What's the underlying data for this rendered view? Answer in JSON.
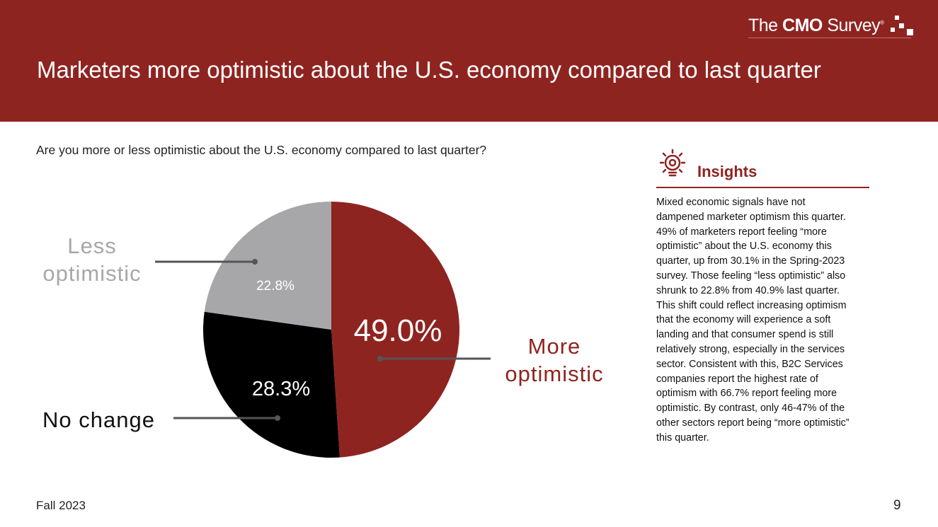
{
  "header": {
    "title": "Marketers more optimistic about the U.S. economy compared to last quarter",
    "logo": {
      "the": "The",
      "cmo": "CMO",
      "survey": "Survey",
      "reg": "®"
    }
  },
  "question": "Are you more or less optimistic about the U.S. economy compared to last quarter?",
  "chart_data": {
    "type": "pie",
    "title": "Are you more or less optimistic about the U.S. economy compared to last quarter?",
    "categories": [
      "More optimistic",
      "No change",
      "Less optimistic"
    ],
    "values": [
      49.0,
      28.3,
      22.8
    ],
    "data_labels": [
      "49.0%",
      "28.3%",
      "22.8%"
    ],
    "colors": [
      "#8e2420",
      "#000000",
      "#a7a7a9"
    ],
    "start": "top, clockwise"
  },
  "labels": {
    "more": "More optimistic",
    "nochange": "No change",
    "less": "Less optimistic"
  },
  "insights": {
    "icon": "lightbulb-gear-icon",
    "title": "Insights",
    "lines": [
      "Mixed economic signals have not",
      "dampened marketer optimism this quarter.",
      "49% of marketers report feeling “more",
      "optimistic” about the U.S. economy this",
      "quarter, up from 30.1% in the Spring-2023",
      "survey. Those feeling “less optimistic” also",
      "shrunk to 22.8% from 40.9% last quarter.",
      "This shift could reflect increasing optimism",
      "that the economy will experience a soft",
      "landing and that consumer spend is still",
      "relatively strong, especially in the services",
      "sector. Consistent with this, B2C Services",
      "companies report the highest rate of",
      "optimism with 66.7% report feeling more",
      "optimistic. By contrast, only 46-47% of the",
      "other sectors report being “more optimistic”",
      "this quarter."
    ]
  },
  "footer": {
    "term": "Fall 2023",
    "page": "9"
  }
}
